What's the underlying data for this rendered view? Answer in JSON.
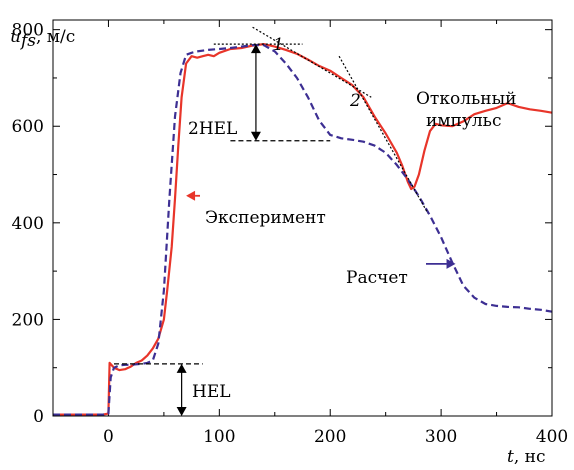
{
  "chart_data": {
    "type": "line",
    "xlabel": {
      "var": "t",
      "unit": ", нс"
    },
    "ylabel": {
      "var": "u",
      "sub": "fs",
      "unit": ", м/с"
    },
    "xlim": [
      -50,
      400
    ],
    "ylim": [
      0,
      820
    ],
    "x_ticks": [
      0,
      100,
      200,
      300,
      400
    ],
    "y_ticks": [
      0,
      200,
      400,
      600,
      800
    ],
    "series": [
      {
        "name": "Эксперимент",
        "color": "#e8352a",
        "dash": "solid",
        "x": [
          -50,
          -5,
          0,
          1,
          5,
          10,
          15,
          20,
          25,
          30,
          35,
          40,
          45,
          50,
          53,
          57,
          60,
          63,
          66,
          70,
          75,
          80,
          85,
          90,
          95,
          100,
          110,
          120,
          130,
          140,
          150,
          160,
          170,
          180,
          190,
          200,
          210,
          220,
          230,
          240,
          250,
          260,
          265,
          270,
          273,
          276,
          280,
          285,
          290,
          295,
          300,
          310,
          320,
          330,
          340,
          350,
          360,
          370,
          380,
          390,
          400
        ],
        "y": [
          3,
          3,
          5,
          110,
          100,
          95,
          97,
          102,
          110,
          115,
          125,
          140,
          160,
          200,
          260,
          350,
          450,
          560,
          660,
          730,
          745,
          742,
          745,
          748,
          745,
          752,
          760,
          762,
          767,
          770,
          765,
          758,
          750,
          738,
          725,
          715,
          700,
          685,
          660,
          620,
          585,
          545,
          518,
          485,
          470,
          475,
          500,
          550,
          590,
          605,
          602,
          600,
          610,
          625,
          632,
          638,
          648,
          640,
          635,
          632,
          628
        ]
      },
      {
        "name": "Расчет",
        "color": "#3d2f93",
        "dash": "dashed",
        "x": [
          -50,
          -5,
          0,
          2,
          5,
          10,
          15,
          20,
          25,
          30,
          35,
          40,
          45,
          50,
          55,
          60,
          65,
          70,
          75,
          80,
          90,
          100,
          110,
          120,
          130,
          140,
          150,
          160,
          170,
          180,
          190,
          200,
          210,
          220,
          230,
          240,
          250,
          260,
          270,
          280,
          290,
          300,
          310,
          320,
          330,
          340,
          350,
          360,
          370,
          380,
          390,
          400
        ],
        "y": [
          3,
          3,
          5,
          80,
          100,
          105,
          106,
          106,
          107,
          108,
          110,
          115,
          150,
          260,
          450,
          620,
          710,
          748,
          752,
          755,
          758,
          760,
          762,
          765,
          768,
          768,
          755,
          730,
          700,
          660,
          612,
          582,
          575,
          572,
          568,
          560,
          545,
          520,
          490,
          455,
          415,
          370,
          318,
          270,
          245,
          232,
          228,
          226,
          225,
          222,
          220,
          216
        ]
      }
    ],
    "annotations": {
      "experiment_label": "Эксперимент",
      "calc_label": "Расчет",
      "hel_label": "HEL",
      "two_hel_label": "2HEL",
      "spall_line1": "Откольный",
      "spall_line2": "импульс",
      "point1": "1",
      "point2": "2"
    }
  }
}
